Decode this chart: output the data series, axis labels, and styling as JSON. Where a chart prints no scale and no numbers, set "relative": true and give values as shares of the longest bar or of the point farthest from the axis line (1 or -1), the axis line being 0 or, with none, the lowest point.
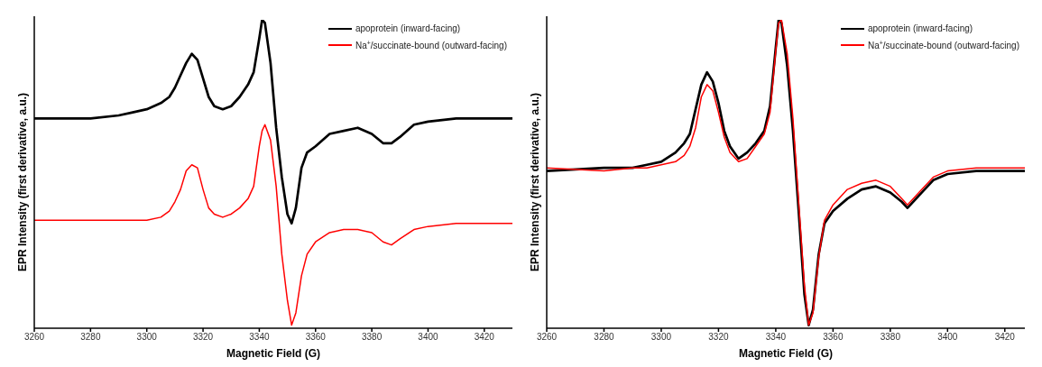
{
  "chart_data": [
    {
      "type": "line",
      "xlabel": "Magnetic Field (G)",
      "ylabel": "EPR Intensity (first derivative, a.u.)",
      "relative": true,
      "legend": "top right",
      "marker": "none",
      "line_style": "solid",
      "xlim": [
        3260,
        3430
      ],
      "xticks": [
        3260,
        3280,
        3300,
        3320,
        3340,
        3360,
        3380,
        3400,
        3420
      ],
      "x": [
        3260,
        3270,
        3280,
        3290,
        3295,
        3300,
        3305,
        3308,
        3310,
        3312,
        3314,
        3316,
        3318,
        3320,
        3322,
        3324,
        3327,
        3330,
        3333,
        3336,
        3338,
        3340,
        3341,
        3342,
        3344,
        3346,
        3348,
        3350,
        3351.5,
        3353,
        3355,
        3357,
        3360,
        3365,
        3370,
        3375,
        3380,
        3384,
        3387,
        3390,
        3395,
        3400,
        3410,
        3420,
        3430
      ],
      "series": [
        {
          "name": "apoprotein (inward-facing)",
          "color": "#000000",
          "values": [
            0.68,
            0.68,
            0.68,
            0.69,
            0.7,
            0.71,
            0.73,
            0.75,
            0.78,
            0.82,
            0.86,
            0.89,
            0.87,
            0.81,
            0.75,
            0.72,
            0.71,
            0.72,
            0.75,
            0.79,
            0.83,
            0.94,
            1.0,
            0.99,
            0.86,
            0.65,
            0.49,
            0.37,
            0.34,
            0.39,
            0.52,
            0.57,
            0.59,
            0.63,
            0.64,
            0.65,
            0.63,
            0.6,
            0.6,
            0.62,
            0.66,
            0.67,
            0.68,
            0.68,
            0.68
          ]
        },
        {
          "name": "Na$^{+}$/succinate-bound (outward-facing)",
          "color": "#ff0000",
          "values": [
            0.35,
            0.35,
            0.35,
            0.35,
            0.35,
            0.35,
            0.36,
            0.38,
            0.41,
            0.45,
            0.51,
            0.53,
            0.52,
            0.45,
            0.39,
            0.37,
            0.36,
            0.37,
            0.39,
            0.42,
            0.46,
            0.59,
            0.64,
            0.66,
            0.61,
            0.46,
            0.24,
            0.09,
            0.01,
            0.05,
            0.17,
            0.24,
            0.28,
            0.31,
            0.32,
            0.32,
            0.31,
            0.28,
            0.27,
            0.29,
            0.32,
            0.33,
            0.34,
            0.34,
            0.34
          ]
        }
      ]
    },
    {
      "type": "line",
      "xlabel": "Magnetic Field (G)",
      "ylabel": "EPR Intensity (first derivative, a.u.)",
      "relative": true,
      "legend": "top right",
      "marker": "none",
      "line_style": "solid",
      "xlim": [
        3260,
        3427
      ],
      "xticks": [
        3260,
        3280,
        3300,
        3320,
        3340,
        3360,
        3380,
        3400,
        3420
      ],
      "x": [
        3260,
        3280,
        3290,
        3295,
        3300,
        3305,
        3308,
        3310,
        3312,
        3314,
        3316,
        3318,
        3320,
        3322,
        3324,
        3327,
        3330,
        3333,
        3336,
        3338,
        3340,
        3341,
        3342,
        3344,
        3346,
        3348,
        3350,
        3351.5,
        3353,
        3355,
        3357,
        3360,
        3365,
        3370,
        3375,
        3380,
        3384,
        3386,
        3390,
        3395,
        3400,
        3410,
        3420,
        3427
      ],
      "series": [
        {
          "name": "apoprotein (inward-facing)",
          "color": "#000000",
          "values": [
            0.51,
            0.52,
            0.52,
            0.53,
            0.54,
            0.57,
            0.6,
            0.63,
            0.71,
            0.79,
            0.83,
            0.8,
            0.73,
            0.64,
            0.59,
            0.55,
            0.57,
            0.6,
            0.64,
            0.72,
            0.91,
            1.0,
            0.99,
            0.85,
            0.64,
            0.38,
            0.11,
            0.01,
            0.06,
            0.24,
            0.34,
            0.38,
            0.42,
            0.45,
            0.46,
            0.44,
            0.41,
            0.39,
            0.43,
            0.48,
            0.5,
            0.51,
            0.51,
            0.51
          ]
        },
        {
          "name": "Na$^{+}$/succinate-bound (outward-facing)",
          "color": "#ff0000",
          "values": [
            0.52,
            0.51,
            0.52,
            0.52,
            0.53,
            0.54,
            0.56,
            0.59,
            0.65,
            0.75,
            0.79,
            0.77,
            0.7,
            0.62,
            0.57,
            0.54,
            0.55,
            0.59,
            0.63,
            0.7,
            0.9,
            0.99,
            1.0,
            0.89,
            0.68,
            0.41,
            0.14,
            0.01,
            0.05,
            0.23,
            0.35,
            0.4,
            0.45,
            0.47,
            0.48,
            0.46,
            0.42,
            0.4,
            0.44,
            0.49,
            0.51,
            0.52,
            0.52,
            0.52
          ]
        }
      ]
    }
  ]
}
